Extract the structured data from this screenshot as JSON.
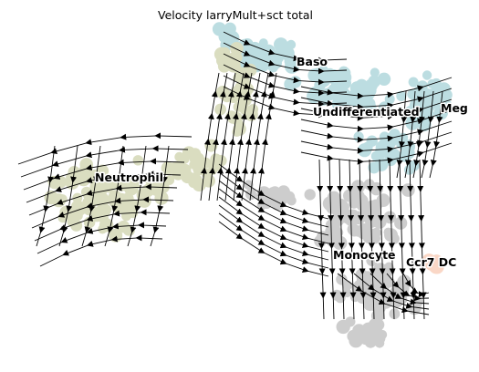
{
  "chart_data": {
    "type": "scatter",
    "title": "Velocity larryMult+sct total",
    "xlabel": "",
    "ylabel": "",
    "axes_visible": false,
    "grid": false,
    "overlay": "velocity streamlines (black arrows)",
    "colors": {
      "Baso": "#86c3c9",
      "Undifferentiated": "#86c3c9",
      "Meg": "#86c3c9",
      "Neutrophil": "#bcc28e",
      "Monocyte": "#a6a6a6",
      "Ccr7 DC": "#f7b899"
    },
    "cluster_labels": [
      "Baso",
      "Undifferentiated",
      "Meg",
      "Neutrophil",
      "Monocyte",
      "Ccr7 DC"
    ]
  }
}
